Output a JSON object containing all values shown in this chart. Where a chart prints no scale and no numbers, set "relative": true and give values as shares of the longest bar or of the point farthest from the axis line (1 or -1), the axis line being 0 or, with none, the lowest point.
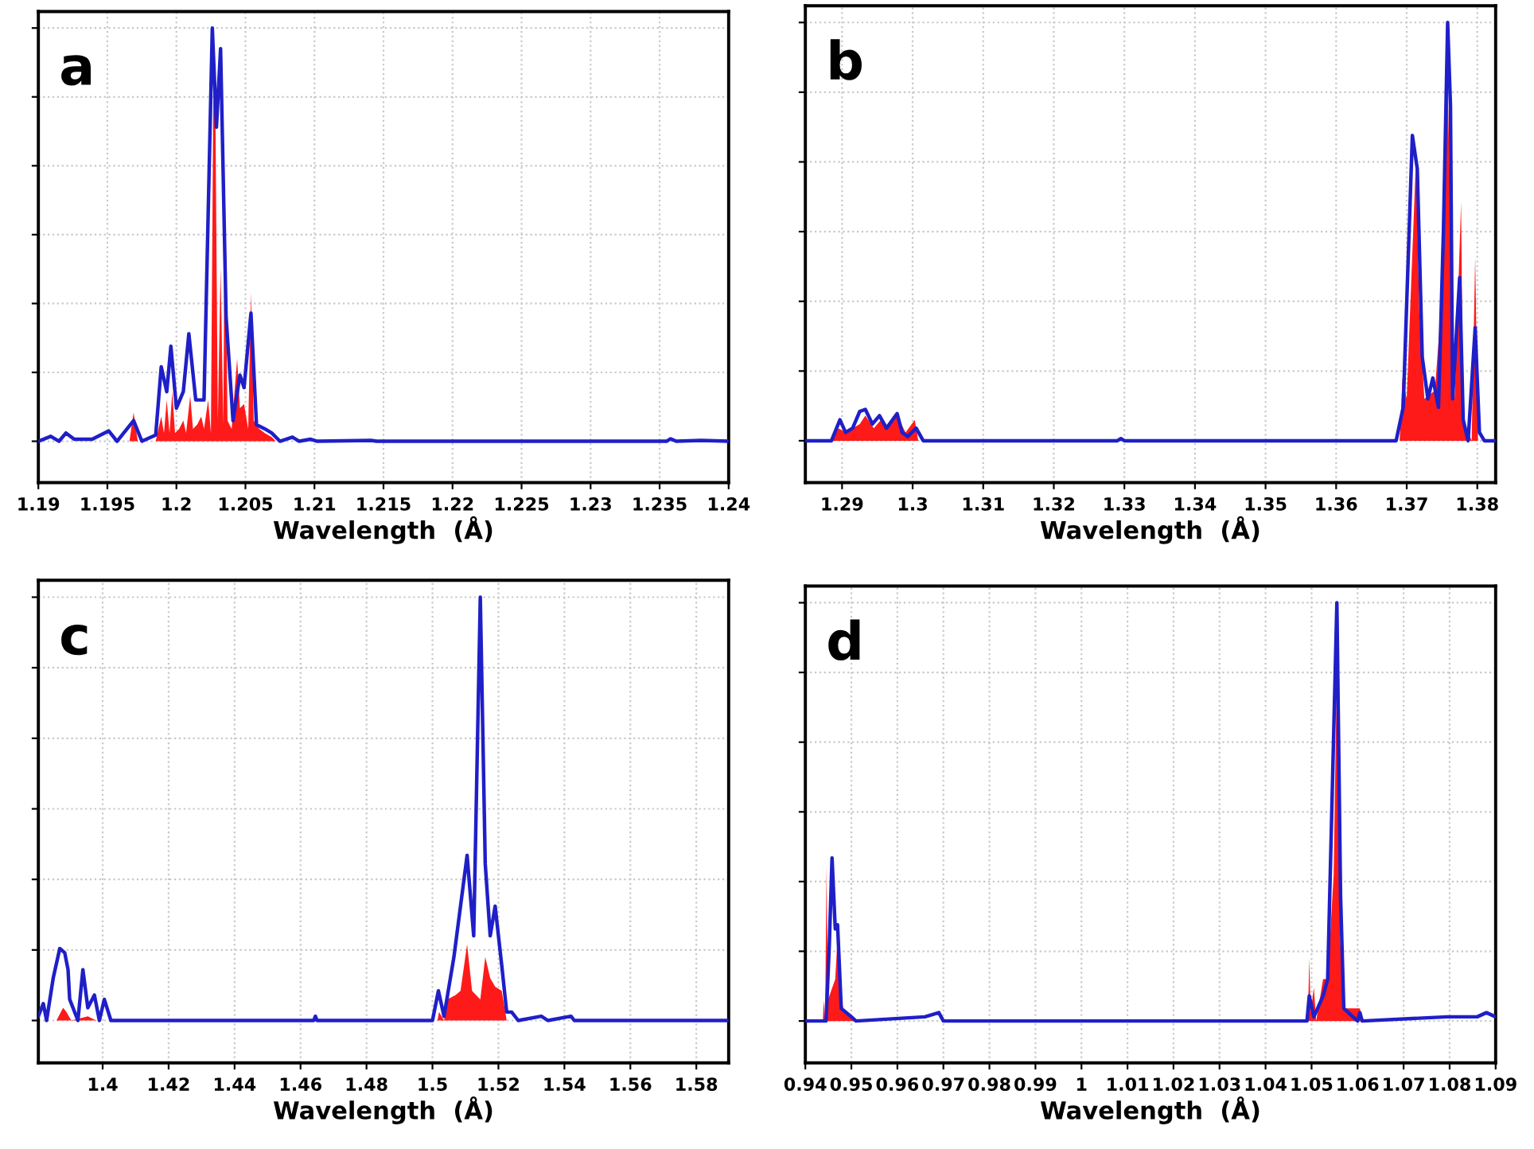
{
  "chart_data": [
    {
      "type": "line",
      "title": "a",
      "xlabel": "Wavelength  (Å)",
      "relative": true,
      "grid": true,
      "tick_labels": "x",
      "xlim": [
        1.19,
        1.24
      ],
      "xticks": [
        1.19,
        1.195,
        1.2,
        1.205,
        1.21,
        1.215,
        1.22,
        1.225,
        1.23,
        1.235,
        1.24
      ],
      "series": [
        {
          "type": "area",
          "color": "#ff1a1a",
          "x": [
            1.1966,
            1.1969,
            1.1972,
            1.1985,
            1.1989,
            1.1991,
            1.1993,
            1.1995,
            1.1997,
            1.1999,
            1.2002,
            1.2005,
            1.2007,
            1.201,
            1.2012,
            1.2015,
            1.2018,
            1.202,
            1.2023,
            1.2025,
            1.2027,
            1.2028,
            1.203,
            1.2032,
            1.2034,
            1.2035,
            1.2037,
            1.204,
            1.2044,
            1.2046,
            1.2049,
            1.2052,
            1.2054,
            1.2056,
            1.206,
            1.2064,
            1.2069,
            1.2072
          ],
          "values": [
            0,
            0.07,
            0,
            0,
            0.06,
            0.02,
            0.1,
            0.02,
            0.12,
            0.02,
            0.03,
            0.05,
            0.02,
            0.11,
            0.03,
            0.04,
            0.06,
            0.03,
            0.1,
            0.02,
            0.97,
            0.9,
            0.05,
            0.42,
            0.04,
            0.6,
            0.05,
            0.03,
            0.2,
            0.08,
            0.09,
            0.03,
            0.36,
            0.05,
            0.03,
            0.02,
            0.01,
            0
          ]
        },
        {
          "color": "#1f1fc8",
          "x": [
            1.19,
            1.1909,
            1.1915,
            1.192,
            1.1926,
            1.1939,
            1.1951,
            1.1957,
            1.1969,
            1.1975,
            1.1985,
            1.1989,
            1.1993,
            1.1996,
            1.2,
            1.2005,
            1.2009,
            1.2014,
            1.202,
            1.2026,
            1.2029,
            1.2032,
            1.2036,
            1.2041,
            1.2046,
            1.2049,
            1.2054,
            1.2058,
            1.2064,
            1.2069,
            1.2075,
            1.2084,
            1.2089,
            1.2097,
            1.2102,
            1.2141,
            1.2145,
            1.2355,
            1.2358,
            1.2362,
            1.238,
            1.24
          ],
          "values": [
            0,
            0.012,
            0,
            0.02,
            0.005,
            0.005,
            0.025,
            0,
            0.05,
            0,
            0.015,
            0.18,
            0.12,
            0.23,
            0.08,
            0.12,
            0.26,
            0.1,
            0.1,
            1.0,
            0.76,
            0.95,
            0.3,
            0.05,
            0.16,
            0.13,
            0.31,
            0.04,
            0.03,
            0.02,
            0,
            0.01,
            0,
            0.005,
            0,
            0.002,
            0,
            0,
            0.006,
            0,
            0.002,
            0
          ]
        }
      ]
    },
    {
      "type": "line",
      "title": "b",
      "xlabel": "Wavelength  (Å)",
      "relative": true,
      "grid": true,
      "tick_labels": "x",
      "xlim": [
        1.2848,
        1.3826
      ],
      "xticks": [
        1.29,
        1.3,
        1.31,
        1.32,
        1.33,
        1.34,
        1.35,
        1.36,
        1.37,
        1.38
      ],
      "series": [
        {
          "type": "area",
          "color": "#ff1a1a",
          "x": [
            1.2885,
            1.2895,
            1.2905,
            1.2925,
            1.2933,
            1.2945,
            1.2955,
            1.2965,
            1.2978,
            1.299,
            1.3003,
            1.3008,
            1.369,
            1.3694,
            1.37,
            1.3713,
            1.3718,
            1.3725,
            1.374,
            1.3752,
            1.3755,
            1.3758,
            1.3762,
            1.3768,
            1.3777,
            1.378,
            1.3792,
            1.3797,
            1.3801
          ],
          "values": [
            0,
            0.03,
            0.02,
            0.04,
            0.06,
            0.03,
            0.05,
            0.03,
            0.06,
            0.02,
            0.05,
            0,
            0,
            0.15,
            0.1,
            0.67,
            0.3,
            0.1,
            0.12,
            0.4,
            0.9,
            0.85,
            0.55,
            0.1,
            0.57,
            0.05,
            0,
            0.44,
            0
          ]
        },
        {
          "color": "#1f1fc8",
          "x": [
            1.2848,
            1.2885,
            1.2897,
            1.2905,
            1.2915,
            1.2925,
            1.2933,
            1.2943,
            1.2953,
            1.2963,
            1.2978,
            1.2985,
            1.2993,
            1.3005,
            1.3015,
            1.329,
            1.3295,
            1.33,
            1.3685,
            1.3695,
            1.3708,
            1.3715,
            1.3722,
            1.373,
            1.3737,
            1.3745,
            1.3752,
            1.3758,
            1.3762,
            1.3765,
            1.3775,
            1.378,
            1.3787,
            1.3797,
            1.3803,
            1.381,
            1.3826
          ],
          "values": [
            0,
            0,
            0.05,
            0.02,
            0.03,
            0.07,
            0.075,
            0.04,
            0.06,
            0.03,
            0.065,
            0.02,
            0.01,
            0.03,
            0,
            0,
            0.005,
            0,
            0,
            0.08,
            0.73,
            0.65,
            0.2,
            0.1,
            0.15,
            0.08,
            0.5,
            1.0,
            0.8,
            0.1,
            0.39,
            0.05,
            0,
            0.27,
            0.02,
            0,
            0
          ]
        }
      ]
    },
    {
      "type": "line",
      "title": "c",
      "xlabel": "Wavelength  (Å)",
      "relative": true,
      "grid": true,
      "tick_labels": "x",
      "xlim": [
        1.3805,
        1.5898
      ],
      "xticks": [
        1.4,
        1.42,
        1.44,
        1.46,
        1.48,
        1.5,
        1.52,
        1.54,
        1.56,
        1.58
      ],
      "series": [
        {
          "type": "area",
          "color": "#ff1a1a",
          "x": [
            1.386,
            1.388,
            1.389,
            1.3905,
            1.3955,
            1.398,
            1.5015,
            1.502,
            1.5035,
            1.5045,
            1.507,
            1.5085,
            1.5105,
            1.512,
            1.5145,
            1.516,
            1.5175,
            1.519,
            1.521,
            1.5225
          ],
          "values": [
            0,
            0.03,
            0.02,
            0,
            0.01,
            0,
            0,
            0.02,
            0,
            0.05,
            0.06,
            0.07,
            0.18,
            0.07,
            0.05,
            0.15,
            0.1,
            0.08,
            0.07,
            0
          ]
        },
        {
          "color": "#1f1fc8",
          "x": [
            1.3805,
            1.382,
            1.383,
            1.385,
            1.387,
            1.3885,
            1.3895,
            1.39,
            1.3925,
            1.394,
            1.3955,
            1.3975,
            1.399,
            1.4005,
            1.4025,
            1.464,
            1.4645,
            1.465,
            1.5,
            1.5018,
            1.5035,
            1.5065,
            1.5085,
            1.5105,
            1.5125,
            1.5145,
            1.516,
            1.5175,
            1.519,
            1.521,
            1.5225,
            1.524,
            1.526,
            1.533,
            1.535,
            1.542,
            1.543,
            1.5898
          ],
          "values": [
            0.01,
            0.04,
            0,
            0.1,
            0.17,
            0.16,
            0.12,
            0.05,
            0,
            0.12,
            0.03,
            0.06,
            0,
            0.05,
            0,
            0,
            0.01,
            0,
            0,
            0.07,
            0.01,
            0.15,
            0.27,
            0.39,
            0.2,
            1.0,
            0.37,
            0.2,
            0.27,
            0.13,
            0.02,
            0.02,
            0,
            0.01,
            0,
            0.01,
            0,
            0
          ]
        }
      ]
    },
    {
      "type": "line",
      "title": "d",
      "xlabel": "Wavelength  (Å)",
      "relative": true,
      "grid": true,
      "tick_labels": "x",
      "xlim": [
        0.94,
        1.09
      ],
      "xticks": [
        0.94,
        0.95,
        0.96,
        0.97,
        0.98,
        0.99,
        1,
        1.01,
        1.02,
        1.03,
        1.04,
        1.05,
        1.06,
        1.07,
        1.08,
        1.09
      ],
      "series": [
        {
          "type": "area",
          "color": "#ff1a1a",
          "x": [
            0.9438,
            0.944,
            0.9443,
            0.9446,
            0.9449,
            0.9465,
            0.947,
            0.9478,
            0.9485,
            0.95,
            0.9505,
            1.0492,
            1.0495,
            1.0498,
            1.0505,
            1.051,
            1.0525,
            1.0535,
            1.0548,
            1.0555,
            1.0562,
            1.057,
            1.0605,
            1.061
          ],
          "values": [
            0,
            0.05,
            0,
            0.37,
            0.05,
            0.1,
            0.2,
            0.05,
            0.02,
            0.01,
            0,
            0,
            0.15,
            0.02,
            0.08,
            0,
            0.1,
            0.1,
            0.35,
            0.85,
            0.2,
            0.03,
            0.03,
            0
          ]
        },
        {
          "color": "#1f1fc8",
          "x": [
            0.94,
            0.9445,
            0.9452,
            0.9458,
            0.9465,
            0.947,
            0.9478,
            0.95,
            0.951,
            0.966,
            0.969,
            0.97,
            1.049,
            1.0495,
            1.0505,
            1.0525,
            1.0535,
            1.0545,
            1.0555,
            1.0563,
            1.057,
            1.06,
            1.0605,
            1.061,
            1.0795,
            1.082,
            1.086,
            1.088,
            1.09
          ],
          "values": [
            0,
            0,
            0.18,
            0.39,
            0.22,
            0.23,
            0.03,
            0.01,
            0,
            0.01,
            0.02,
            0,
            0,
            0.06,
            0.01,
            0.06,
            0.1,
            0.55,
            1.0,
            0.3,
            0.03,
            0,
            0.02,
            0,
            0.01,
            0.01,
            0.01,
            0.02,
            0.01
          ]
        }
      ]
    }
  ]
}
